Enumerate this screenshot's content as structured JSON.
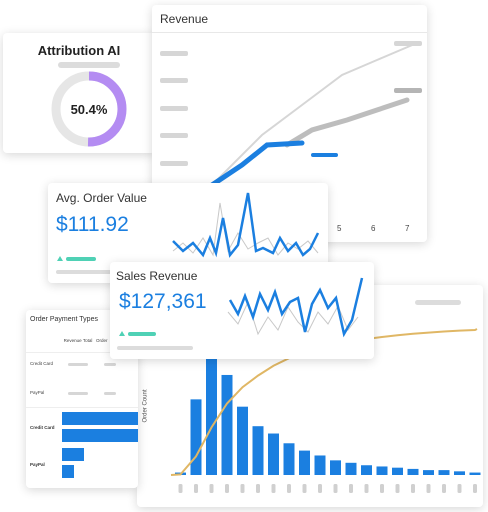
{
  "attribution": {
    "title": "Attribution AI",
    "value": "50.4%",
    "fraction": 0.504,
    "accent": "#b48cf2",
    "track": "#e6e6e6"
  },
  "revenue": {
    "title": "Revenue",
    "ticks": [
      "5",
      "6",
      "7"
    ],
    "line_blue": "#1b7fe0",
    "line_gray": "#bdbdbd",
    "line_light": "#d6d6d6"
  },
  "aov": {
    "title": "Avg. Order Value",
    "value": "$111.92",
    "color": "#1b7fe0",
    "trend_color": "#4fd1b5"
  },
  "sales": {
    "title": "Sales Revenue",
    "value": "$127,361",
    "color": "#1b7fe0",
    "trend_color": "#4fd1b5"
  },
  "payment": {
    "title": "Order Payment Types",
    "col_headers": [
      "Revenue Total",
      "Order"
    ],
    "rows": [
      "Credit Card",
      "PayPal"
    ],
    "bar_rows": [
      "Credit Card",
      "PayPal"
    ]
  },
  "order_count": {
    "ylabel": "Order Count",
    "values": [
      2,
      62,
      100,
      82,
      56,
      40,
      34,
      26,
      20,
      16,
      12,
      10,
      8,
      7,
      6,
      5,
      4,
      4,
      3,
      2
    ],
    "bar_color": "#1b7fe0",
    "cumulative_color": "#e0b765"
  }
}
